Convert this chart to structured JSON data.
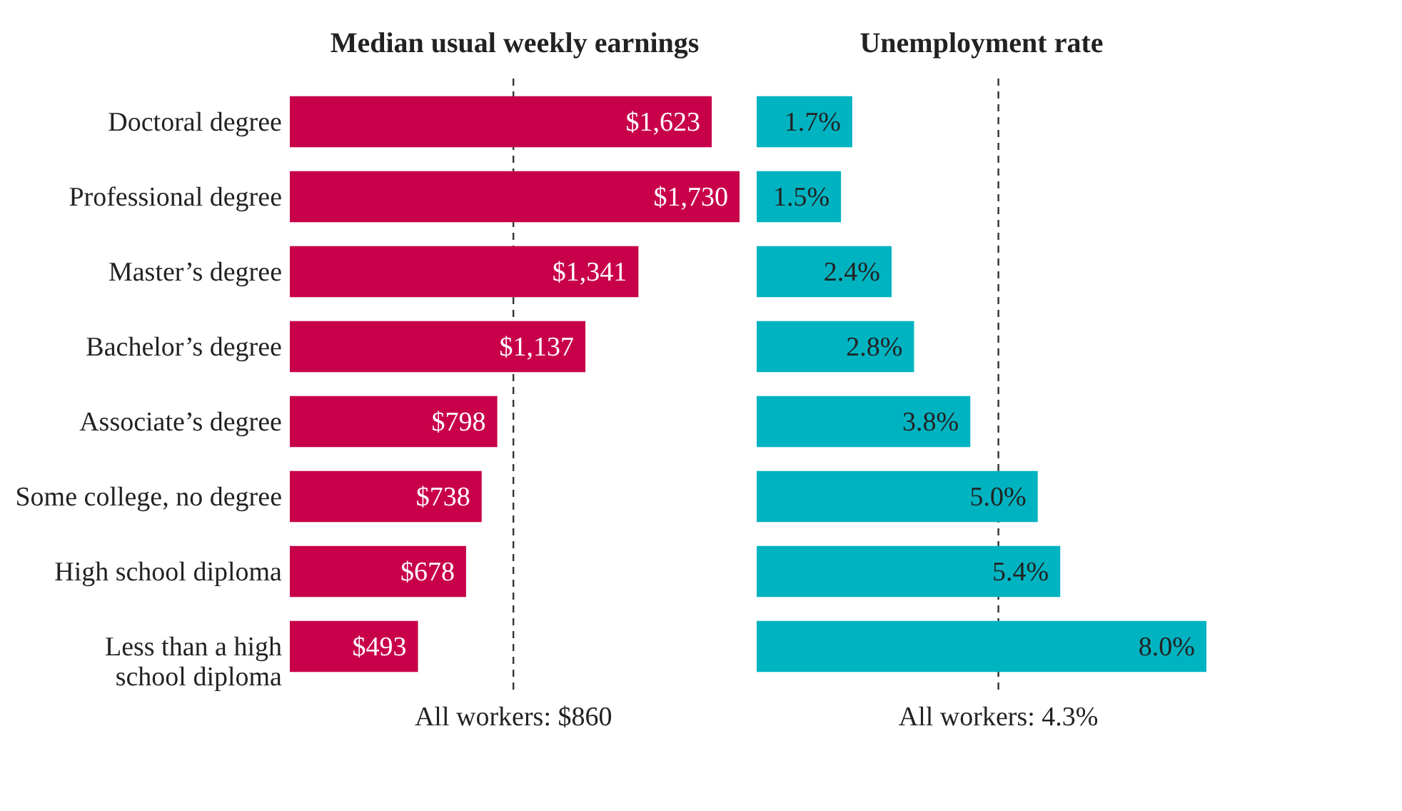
{
  "chart_data": [
    {
      "type": "bar",
      "orientation": "horizontal",
      "title": "Median usual weekly earnings",
      "categories": [
        "Doctoral degree",
        "Professional degree",
        "Master’s degree",
        "Bachelor’s degree",
        "Associate’s degree",
        "Some college, no degree",
        "High school diploma",
        "Less than a high school diploma"
      ],
      "values": [
        1623,
        1730,
        1341,
        1137,
        798,
        738,
        678,
        493
      ],
      "value_labels": [
        "$1,623",
        "$1,730",
        "$1,341",
        "$1,137",
        "$798",
        "$738",
        "$678",
        "$493"
      ],
      "color": "#c8004a",
      "ref_lines": [
        {
          "axis": "x",
          "value": 860,
          "label": "All workers: $860",
          "line_style": "dashed",
          "color": "#333333"
        }
      ],
      "grid": false
    },
    {
      "type": "bar",
      "orientation": "horizontal",
      "title": "Unemployment rate",
      "categories": [
        null,
        null,
        null,
        null,
        null,
        null,
        null,
        null
      ],
      "values": [
        1.7,
        1.5,
        2.4,
        2.8,
        3.8,
        5.0,
        5.4,
        8.0
      ],
      "value_labels": [
        "1.7%",
        "1.5%",
        "2.4%",
        "2.8%",
        "3.8%",
        "5.0%",
        "5.4%",
        "8.0%"
      ],
      "color": "#00b3c1",
      "ref_lines": [
        {
          "axis": "x",
          "value": 4.3,
          "label": "All workers: 4.3%",
          "line_style": "dashed",
          "color": "#333333"
        }
      ],
      "tick_labels": false,
      "grid": false
    }
  ]
}
